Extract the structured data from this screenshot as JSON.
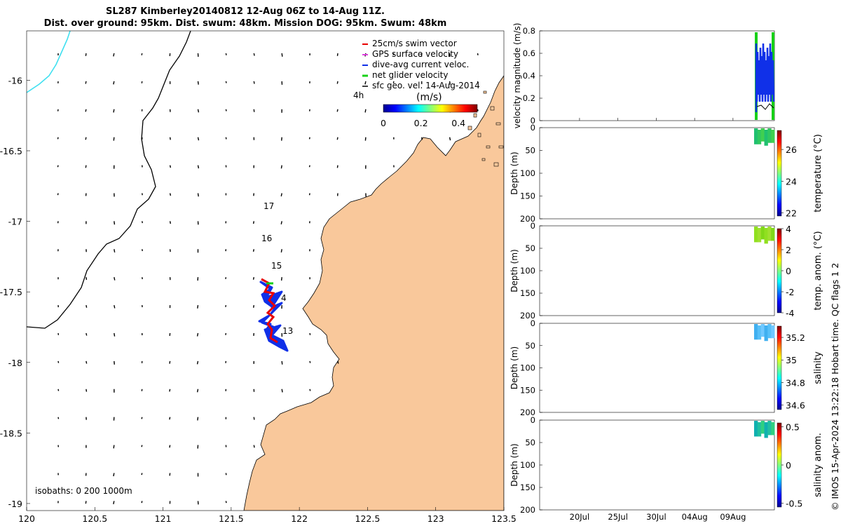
{
  "title": {
    "line1": "SL287 Kimberley20140812 12-Aug 06Z to 14-Aug 11Z.",
    "line2": "Dist. over ground: 95km. Dist. swum: 48km. Mission DOG: 95km. Swum: 48km"
  },
  "colors": {
    "land": "#f9c89b",
    "track_blue": "#1030e8",
    "track_red": "#e80000",
    "track_green": "#18d018",
    "isobath": "#000000",
    "isobath_shallow": "#40e0f0"
  },
  "chart_data": [
    {
      "type": "map",
      "xlim": [
        120,
        123.5
      ],
      "ylim": [
        -19.05,
        -15.65
      ],
      "x_ticks": [
        "120",
        "120.5",
        "121",
        "121.5",
        "122",
        "122.5",
        "123",
        "123.5"
      ],
      "y_ticks": [
        "-16",
        "-16.5",
        "-17",
        "-17.5",
        "-18",
        "-18.5",
        "-19"
      ],
      "legend": [
        {
          "label": "25cm/s swim vector",
          "color": "#e80000"
        },
        {
          "label": "GPS surface velocity",
          "color": "#e040e0"
        },
        {
          "label": "dive-avg current veloc.",
          "color": "#1030e8"
        },
        {
          "label": "net glider velocity",
          "color": "#18d018"
        },
        {
          "label": "sfc geo. vel. 14-Aug-2014",
          "color": "#000000"
        }
      ],
      "interval_label": "4h",
      "colorbar": {
        "label": "(m/s)",
        "ticks": [
          "0",
          "0.2",
          "0.4"
        ],
        "range": [
          0,
          0.5
        ]
      },
      "track_labels": [
        {
          "text": "17",
          "lon": 121.75,
          "lat": -16.9
        },
        {
          "text": "16",
          "lon": 121.73,
          "lat": -17.13
        },
        {
          "text": "15",
          "lon": 121.8,
          "lat": -17.33
        },
        {
          "text": "4",
          "lon": 121.86,
          "lat": -17.55
        },
        {
          "text": "13",
          "lon": 121.86,
          "lat": -17.79
        }
      ],
      "isobaths_label": "isobaths: 0   200   1000m"
    },
    {
      "type": "line",
      "ylabel": "velocity magnitude (m/s)",
      "ylim": [
        0,
        0.8
      ],
      "y_ticks": [
        "0",
        "0.2",
        "0.4",
        "0.6",
        "0.8"
      ],
      "x_ticks": [
        "20Jul",
        "25Jul",
        "30Jul",
        "04Aug",
        "09Aug"
      ]
    },
    {
      "type": "heatmap",
      "ylabel": "Depth (m)",
      "y_ticks": [
        "0",
        "50",
        "100",
        "150",
        "200"
      ],
      "ylim": [
        0,
        200
      ],
      "colorbar": {
        "label": "temperature (°C)",
        "ticks": [
          "22",
          "24",
          "26"
        ],
        "range": [
          21.8,
          27.2
        ]
      }
    },
    {
      "type": "heatmap",
      "ylabel": "Depth (m)",
      "y_ticks": [
        "0",
        "50",
        "100",
        "150",
        "200"
      ],
      "ylim": [
        0,
        200
      ],
      "colorbar": {
        "label": "temp. anom. (°C)",
        "ticks": [
          "-4",
          "-2",
          "0",
          "2",
          "4"
        ],
        "range": [
          -4,
          4
        ]
      }
    },
    {
      "type": "heatmap",
      "ylabel": "Depth (m)",
      "y_ticks": [
        "0",
        "50",
        "100",
        "150",
        "200"
      ],
      "ylim": [
        0,
        200
      ],
      "colorbar": {
        "label": "salinity",
        "ticks": [
          "34.6",
          "34.8",
          "35",
          "35.2"
        ],
        "range": [
          34.56,
          35.3
        ]
      }
    },
    {
      "type": "heatmap",
      "ylabel": "Depth (m)",
      "y_ticks": [
        "0",
        "50",
        "100",
        "150",
        "200"
      ],
      "ylim": [
        0,
        200
      ],
      "colorbar": {
        "label": "salinity anom.",
        "ticks": [
          "-0.5",
          "0",
          "0.5"
        ],
        "range": [
          -0.55,
          0.55
        ]
      }
    }
  ],
  "copyright": "© IMOS 15-Apr-2024 13:22:18 Hobart time. QC flags 1  2"
}
